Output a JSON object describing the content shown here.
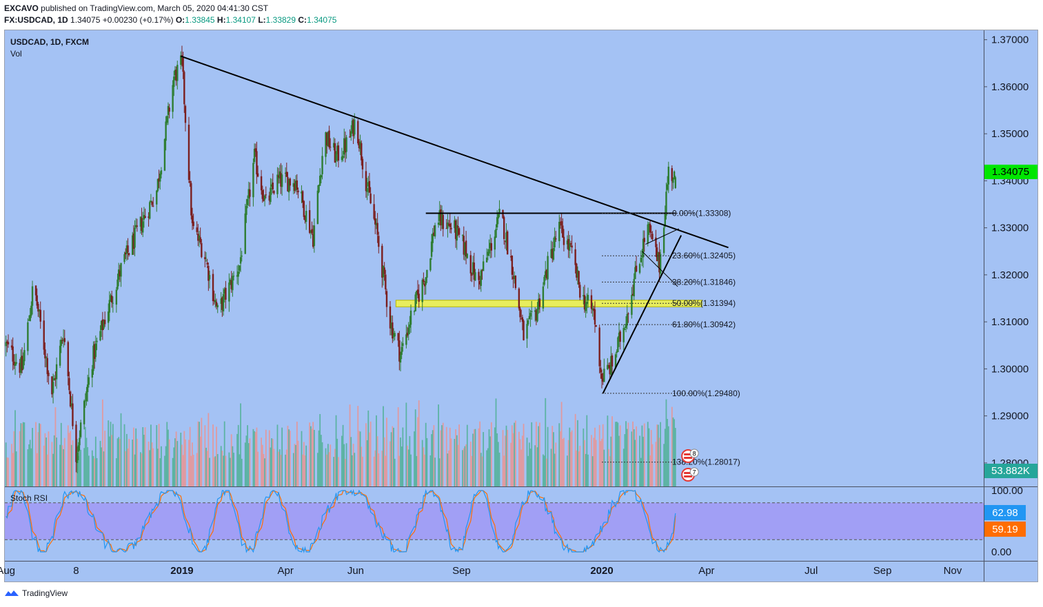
{
  "header": {
    "author": "EXCAVO",
    "published": "published on TradingView.com, March 05, 2020 04:41:30 CST",
    "symbol_full": "FX:USDCAD, 1D",
    "last": "1.34075",
    "change": "+0.00230 (+0.17%)",
    "o_label": "O:",
    "o": "1.33845",
    "h_label": "H:",
    "h": "1.34107",
    "l_label": "L:",
    "l": "1.33829",
    "c_label": "C:",
    "c": "1.34075"
  },
  "chart_title": "USDCAD, 1D, FXCM",
  "volume_label": "Vol",
  "indicator_label": "Stoch RSI",
  "footer_brand": "TradingView",
  "colors": {
    "background": "#a4c2f4",
    "bull": "#2e7d32",
    "bear": "#7b1f1f",
    "vol_bull": "#5cb3a3",
    "vol_bear": "#e09aa0",
    "stoch_band": "#a199f4",
    "k_line": "#2196f3",
    "d_line": "#ff6d00",
    "last_price_tag": "#00e600",
    "volume_tag": "#26a69a"
  },
  "tags": {
    "last_price": "1.34075",
    "volume": "53.882K",
    "stoch_k": "62.98",
    "stoch_d": "59.19"
  },
  "events": [
    {
      "count": "8"
    },
    {
      "count": "7"
    }
  ],
  "chart_data": [
    {
      "type": "candlestick",
      "title": "USDCAD, 1D, FXCM",
      "ylim": [
        1.275,
        1.372
      ],
      "y_ticks": [
        "1.37000",
        "1.36000",
        "1.35000",
        "1.34000",
        "1.33000",
        "1.32000",
        "1.31000",
        "1.30000",
        "1.29000",
        "1.28000"
      ],
      "x_ticks": [
        "Aug",
        "8",
        "2019",
        "Apr",
        "Jun",
        "Sep",
        "2020",
        "Apr",
        "Jul",
        "Sep",
        "Nov"
      ],
      "bold_x_ticks": [
        "2019",
        "2020"
      ],
      "path_points_approx": [
        [
          "2018-08-01",
          1.305
        ],
        [
          "2018-08-15",
          1.3
        ],
        [
          "2018-08-25",
          1.318
        ],
        [
          "2018-09-10",
          1.295
        ],
        [
          "2018-09-20",
          1.308
        ],
        [
          "2018-10-01",
          1.282
        ],
        [
          "2018-10-15",
          1.302
        ],
        [
          "2018-10-25",
          1.31
        ],
        [
          "2018-11-10",
          1.322
        ],
        [
          "2018-11-25",
          1.33
        ],
        [
          "2018-12-10",
          1.338
        ],
        [
          "2018-12-25",
          1.362
        ],
        [
          "2019-01-01",
          1.365
        ],
        [
          "2019-01-10",
          1.33
        ],
        [
          "2019-01-20",
          1.325
        ],
        [
          "2019-02-01",
          1.312
        ],
        [
          "2019-02-20",
          1.322
        ],
        [
          "2019-03-05",
          1.345
        ],
        [
          "2019-03-15",
          1.335
        ],
        [
          "2019-03-25",
          1.34
        ],
        [
          "2019-04-10",
          1.34
        ],
        [
          "2019-04-25",
          1.328
        ],
        [
          "2019-05-05",
          1.35
        ],
        [
          "2019-05-15",
          1.345
        ],
        [
          "2019-05-25",
          1.348
        ],
        [
          "2019-06-01",
          1.353
        ],
        [
          "2019-06-10",
          1.34
        ],
        [
          "2019-06-20",
          1.328
        ],
        [
          "2019-07-01",
          1.31
        ],
        [
          "2019-07-10",
          1.303
        ],
        [
          "2019-07-20",
          1.312
        ],
        [
          "2019-08-01",
          1.32
        ],
        [
          "2019-08-10",
          1.332
        ],
        [
          "2019-08-25",
          1.33
        ],
        [
          "2019-09-05",
          1.325
        ],
        [
          "2019-09-15",
          1.318
        ],
        [
          "2019-09-25",
          1.325
        ],
        [
          "2019-10-05",
          1.333
        ],
        [
          "2019-10-15",
          1.322
        ],
        [
          "2019-10-25",
          1.307
        ],
        [
          "2019-11-05",
          1.312
        ],
        [
          "2019-11-15",
          1.322
        ],
        [
          "2019-11-25",
          1.33
        ],
        [
          "2019-12-05",
          1.325
        ],
        [
          "2019-12-15",
          1.315
        ],
        [
          "2019-12-25",
          1.312
        ],
        [
          "2020-01-01",
          1.298
        ],
        [
          "2020-01-10",
          1.301
        ],
        [
          "2020-01-20",
          1.309
        ],
        [
          "2020-02-01",
          1.322
        ],
        [
          "2020-02-10",
          1.33
        ],
        [
          "2020-02-20",
          1.322
        ],
        [
          "2020-02-28",
          1.342
        ],
        [
          "2020-03-05",
          1.34075
        ]
      ],
      "fibonacci": [
        {
          "label": "0.00%(1.33308)",
          "value": 1.33308
        },
        {
          "label": "23.60%(1.32405)",
          "value": 1.32405
        },
        {
          "label": "38.20%(1.31846)",
          "value": 1.31846
        },
        {
          "label": "50.00%(1.31394)",
          "value": 1.31394
        },
        {
          "label": "61.80%(1.30942)",
          "value": 1.30942
        },
        {
          "label": "100.00%(1.29480)",
          "value": 1.2948
        },
        {
          "label": "138.20%(1.28017)",
          "value": 1.28017
        }
      ],
      "support_zone": [
        1.3132,
        1.3146
      ],
      "resistance_level": 1.3331,
      "downtrend_line": [
        [
          "2018-12-31",
          1.3665
        ],
        [
          "2020-04-20",
          1.3258
        ]
      ],
      "uptrend_line": [
        [
          "2020-01-02",
          1.2948
        ],
        [
          "2020-03-10",
          1.3284
        ]
      ]
    },
    {
      "type": "line",
      "title": "Stoch RSI",
      "ylim": [
        0,
        100
      ],
      "y_ticks": [
        "100.00",
        "0.00"
      ],
      "bands": [
        20,
        80
      ],
      "series": [
        {
          "name": "K",
          "last": 62.98
        },
        {
          "name": "D",
          "last": 59.19
        }
      ]
    }
  ]
}
